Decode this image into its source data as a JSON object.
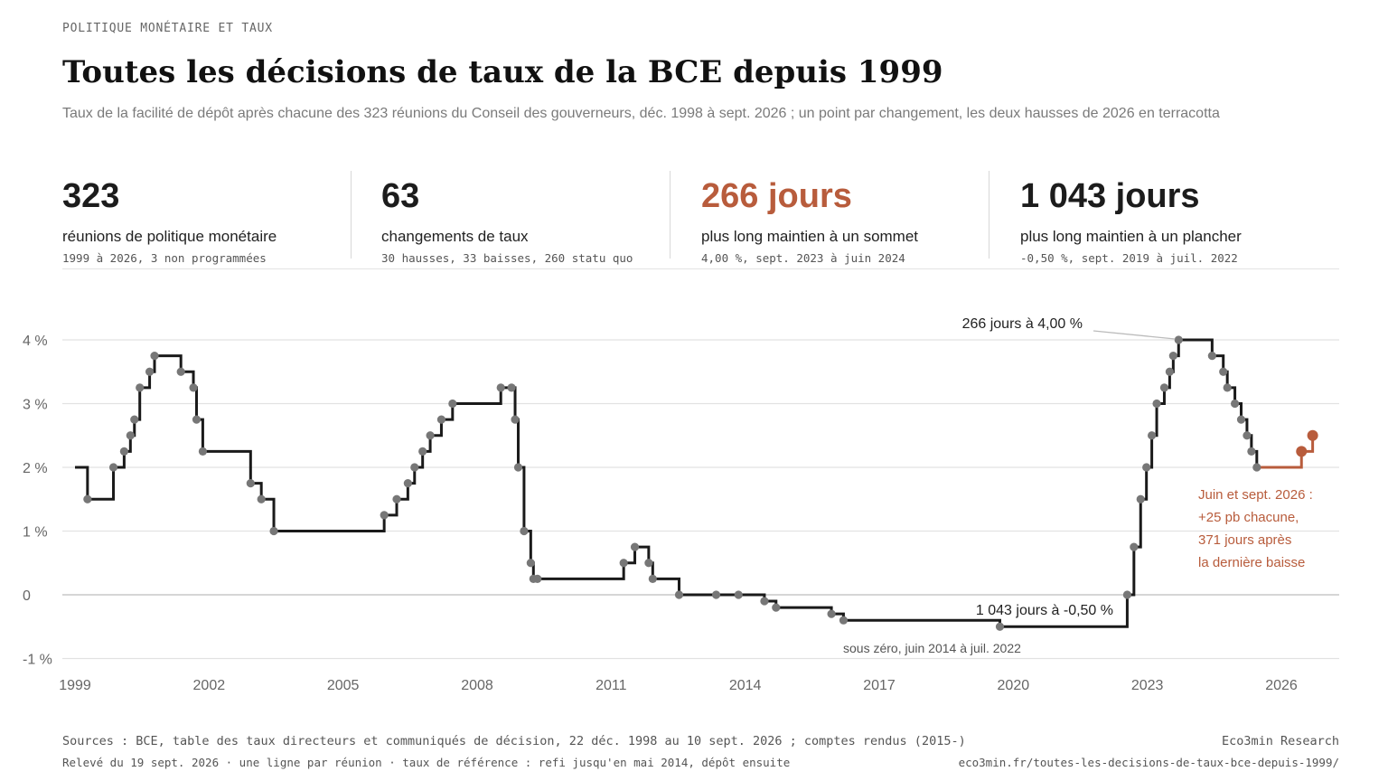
{
  "kicker": "POLITIQUE MONÉTAIRE ET TAUX",
  "title": "Toutes les décisions de taux de la BCE depuis 1999",
  "subtitle": "Taux de la facilité de dépôt après chacune des 323 réunions du Conseil des gouverneurs, déc. 1998 à sept. 2026 ; un point par changement, les deux hausses de 2026 en terracotta",
  "colors": {
    "line": "#1a1a1a",
    "point": "#777777",
    "accent": "#b85c3c",
    "grid": "#e2e2e2",
    "zero": "#bdbdbd"
  },
  "kpis": [
    {
      "value": "323",
      "label": "réunions de politique monétaire",
      "note": "1999 à 2026, 3 non programmées",
      "accent": false
    },
    {
      "value": "63",
      "label": "changements de taux",
      "note": "30 hausses, 33 baisses, 260 statu quo",
      "accent": false
    },
    {
      "value": "266 jours",
      "label": "plus long maintien à un sommet",
      "note": "4,00 %, sept. 2023 à juin 2024",
      "accent": true
    },
    {
      "value": "1 043 jours",
      "label": "plus long maintien à un plancher",
      "note": "-0,50 %, sept. 2019 à juil. 2022",
      "accent": false
    }
  ],
  "chart_data": {
    "type": "line",
    "step": "after",
    "xlim": [
      1999.0,
      2027.3
    ],
    "ylim": [
      -1.0,
      4.5
    ],
    "grid": true,
    "x_ticks": [
      1999,
      2002,
      2005,
      2008,
      2011,
      2014,
      2017,
      2020,
      2023,
      2026
    ],
    "x_tick_labels": [
      "1999",
      "2002",
      "2005",
      "2008",
      "2011",
      "2014",
      "2017",
      "2020",
      "2023",
      "2026"
    ],
    "y_ticks": [
      -1,
      0,
      1,
      2,
      3,
      4
    ],
    "y_tick_labels": [
      "-1 %",
      "0",
      "1 %",
      "2 %",
      "3 %",
      "4 %"
    ],
    "series": [
      {
        "points": [
          [
            1999.0,
            2.0
          ],
          [
            1999.28,
            1.5
          ],
          [
            1999.86,
            2.0
          ],
          [
            2000.1,
            2.25
          ],
          [
            2000.24,
            2.5
          ],
          [
            2000.33,
            2.75
          ],
          [
            2000.45,
            3.25
          ],
          [
            2000.67,
            3.5
          ],
          [
            2000.78,
            3.75
          ],
          [
            2001.37,
            3.5
          ],
          [
            2001.65,
            3.25
          ],
          [
            2001.72,
            2.75
          ],
          [
            2001.86,
            2.25
          ],
          [
            2002.93,
            1.75
          ],
          [
            2003.17,
            1.5
          ],
          [
            2003.45,
            1.0
          ],
          [
            2005.92,
            1.25
          ],
          [
            2006.2,
            1.5
          ],
          [
            2006.45,
            1.75
          ],
          [
            2006.6,
            2.0
          ],
          [
            2006.78,
            2.25
          ],
          [
            2006.95,
            2.5
          ],
          [
            2007.2,
            2.75
          ],
          [
            2007.45,
            3.0
          ],
          [
            2008.53,
            3.25
          ],
          [
            2008.77,
            3.25
          ],
          [
            2008.85,
            2.75
          ],
          [
            2008.92,
            2.0
          ],
          [
            2009.05,
            1.0
          ],
          [
            2009.2,
            0.5
          ],
          [
            2009.26,
            0.25
          ],
          [
            2009.35,
            0.25
          ],
          [
            2011.28,
            0.5
          ],
          [
            2011.53,
            0.75
          ],
          [
            2011.84,
            0.5
          ],
          [
            2011.93,
            0.25
          ],
          [
            2012.52,
            0.0
          ],
          [
            2013.35,
            0.0
          ],
          [
            2013.85,
            0.0
          ],
          [
            2014.43,
            -0.1
          ],
          [
            2014.69,
            -0.2
          ],
          [
            2015.93,
            -0.3
          ],
          [
            2016.2,
            -0.4
          ],
          [
            2019.7,
            -0.5
          ],
          [
            2022.55,
            0.0
          ],
          [
            2022.7,
            0.75
          ],
          [
            2022.85,
            1.5
          ],
          [
            2022.98,
            2.0
          ],
          [
            2023.1,
            2.5
          ],
          [
            2023.21,
            3.0
          ],
          [
            2023.38,
            3.25
          ],
          [
            2023.5,
            3.5
          ],
          [
            2023.58,
            3.75
          ],
          [
            2023.7,
            4.0
          ],
          [
            2024.45,
            3.75
          ],
          [
            2024.7,
            3.5
          ],
          [
            2024.79,
            3.25
          ],
          [
            2024.96,
            3.0
          ],
          [
            2025.1,
            2.75
          ],
          [
            2025.23,
            2.5
          ],
          [
            2025.33,
            2.25
          ],
          [
            2025.45,
            2.0
          ]
        ]
      },
      {
        "points": [
          [
            2025.45,
            2.0
          ],
          [
            2026.45,
            2.25
          ],
          [
            2026.7,
            2.5
          ]
        ]
      }
    ],
    "annotations": [
      {
        "text": "266 jours à 4,00 %",
        "x": 2023.7,
        "y": 4.0
      },
      {
        "text": "1 043 jours à -0,50 %",
        "x": 2019.7,
        "y": -0.5
      },
      {
        "text": "sous zéro, juin 2014 à juil. 2022",
        "x": 2016.2,
        "y": -0.4
      },
      {
        "lines": [
          "Juin et sept. 2026 :",
          "+25 pb chacune,",
          "371 jours après",
          "la dernière baisse"
        ],
        "x": 2026.5,
        "y": 2.25
      }
    ]
  },
  "footer": {
    "sources": "Sources : BCE, table des taux directeurs et communiqués de décision, 22 déc. 1998 au 10 sept. 2026 ; comptes rendus (2015-)",
    "note": "Relevé du 19 sept. 2026 · une ligne par réunion · taux de référence : refi jusqu'en mai 2014, dépôt ensuite",
    "brand": "Eco3min Research",
    "url": "eco3min.fr/toutes-les-decisions-de-taux-bce-depuis-1999/"
  }
}
